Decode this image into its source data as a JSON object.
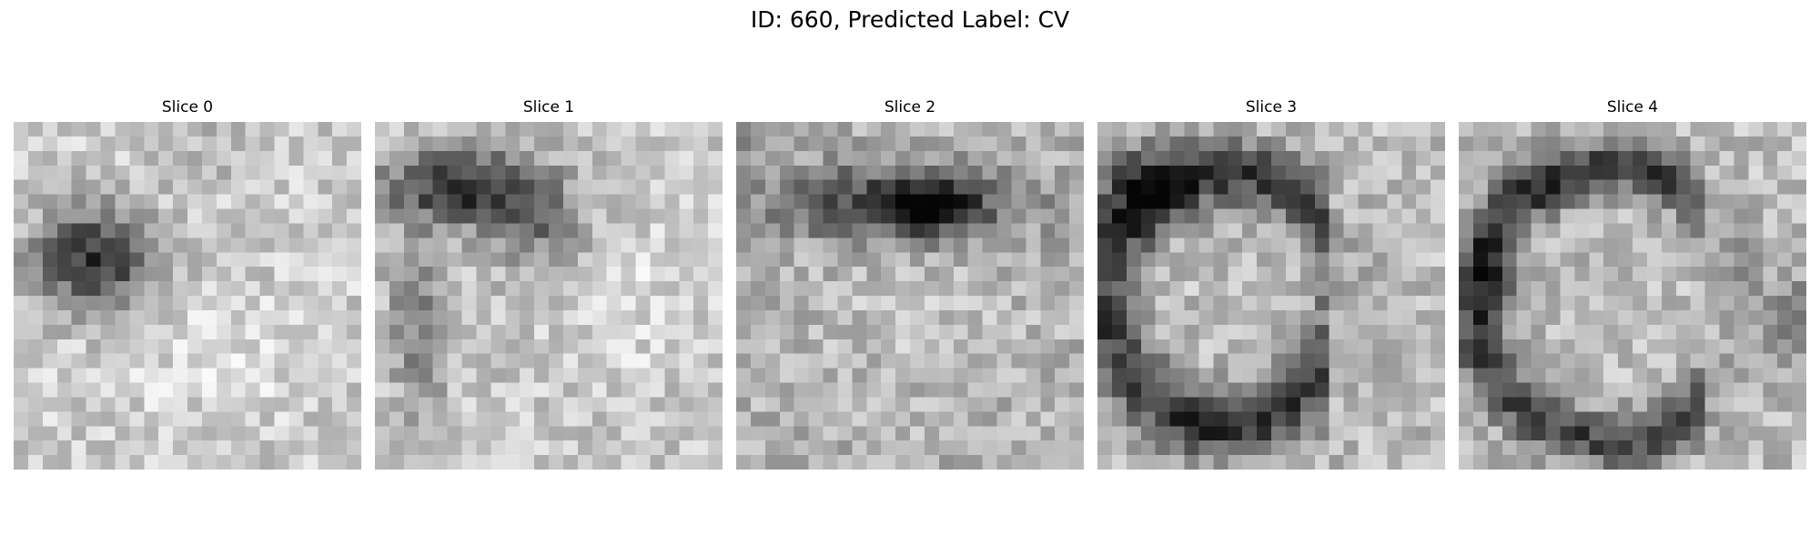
{
  "figure": {
    "title": "ID: 660, Predicted Label: CV"
  },
  "panels": [
    {
      "title": "Slice 0",
      "pattern": "dark-blob-left"
    },
    {
      "title": "Slice 1",
      "pattern": "dark-band-top-left"
    },
    {
      "title": "Slice 2",
      "pattern": "dark-band-top"
    },
    {
      "title": "Slice 3",
      "pattern": "dark-ring-center"
    },
    {
      "title": "Slice 4",
      "pattern": "dark-ring-large"
    }
  ]
}
